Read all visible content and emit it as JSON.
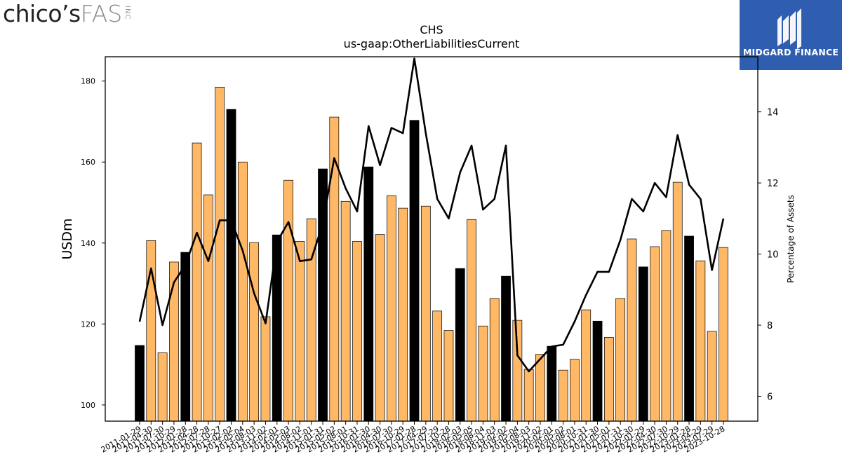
{
  "logo_left": {
    "brand": "chico’s",
    "sub": "FAS",
    "tag": "INC"
  },
  "logo_right": {
    "caption": "MIDGARD FINANCE"
  },
  "chart_data": {
    "type": "bar",
    "title": "CHS",
    "subtitle": "us-gaap:OtherLiabilitiesCurrent",
    "ylabel": "USDm",
    "y2label": "Percentage of Assets",
    "ylim": [
      96,
      186
    ],
    "y2lim": [
      5.3,
      15.55
    ],
    "yticks": [
      100,
      120,
      140,
      160,
      180
    ],
    "y2ticks": [
      6,
      8,
      10,
      12,
      14
    ],
    "categories": [
      "2011-01-29",
      "2011-04-30",
      "2011-07-30",
      "2011-10-29",
      "2012-01-28",
      "2012-04-28",
      "2012-07-28",
      "2012-10-27",
      "2013-02-02",
      "2013-05-04",
      "2013-08-03",
      "2013-11-02",
      "2014-02-01",
      "2014-05-03",
      "2014-08-02",
      "2014-11-01",
      "2015-01-31",
      "2015-05-02",
      "2015-08-01",
      "2015-10-31",
      "2016-01-30",
      "2016-04-30",
      "2016-07-30",
      "2016-10-29",
      "2017-01-28",
      "2017-04-29",
      "2017-07-29",
      "2017-10-28",
      "2018-02-03",
      "2018-05-05",
      "2018-08-04",
      "2018-11-03",
      "2019-02-02",
      "2019-05-04",
      "2019-08-03",
      "2019-11-02",
      "2020-02-01",
      "2020-05-02",
      "2020-08-01",
      "2020-10-31",
      "2021-01-30",
      "2021-05-01",
      "2021-07-31",
      "2021-10-30",
      "2022-01-29",
      "2022-04-30",
      "2022-07-30",
      "2022-10-29",
      "2023-01-28",
      "2023-04-29",
      "2023-07-29",
      "2023-10-28"
    ],
    "series": [
      {
        "type": "bar",
        "axis": "left",
        "colors": {
          "fiscal_year_end": "#000000",
          "quarter": "#ffb866"
        },
        "values": [
          114.7,
          140.6,
          112.9,
          135.3,
          137.7,
          164.7,
          151.9,
          178.5,
          173.0,
          160.0,
          140.1,
          121.8,
          142.0,
          155.5,
          140.4,
          146.0,
          158.3,
          171.1,
          150.3,
          140.4,
          158.8,
          142.1,
          151.7,
          148.6,
          170.3,
          149.1,
          123.2,
          118.4,
          133.7,
          145.8,
          119.5,
          126.3,
          131.8,
          120.9,
          108.8,
          112.5,
          114.5,
          108.6,
          111.3,
          123.5,
          120.7,
          116.7,
          126.3,
          141.0,
          134.1,
          139.1,
          143.1,
          155.0,
          141.7,
          135.6,
          118.2,
          138.9
        ],
        "fiscal_year_end": [
          true,
          false,
          false,
          false,
          true,
          false,
          false,
          false,
          true,
          false,
          false,
          false,
          true,
          false,
          false,
          false,
          true,
          false,
          false,
          false,
          true,
          false,
          false,
          false,
          true,
          false,
          false,
          false,
          true,
          false,
          false,
          false,
          true,
          false,
          false,
          false,
          true,
          false,
          false,
          false,
          true,
          false,
          false,
          false,
          true,
          false,
          false,
          false,
          true,
          false,
          false,
          false
        ]
      },
      {
        "type": "line",
        "axis": "right",
        "color": "#000000",
        "values": [
          8.1,
          9.6,
          8.0,
          9.2,
          9.7,
          10.6,
          9.8,
          10.95,
          10.95,
          10.1,
          8.9,
          8.05,
          10.35,
          10.9,
          9.8,
          9.85,
          10.85,
          12.7,
          11.85,
          11.2,
          13.6,
          12.5,
          13.55,
          13.4,
          15.5,
          13.4,
          11.55,
          11.0,
          12.3,
          13.05,
          11.25,
          11.55,
          13.05,
          7.15,
          6.7,
          7.05,
          7.4,
          7.45,
          8.1,
          8.85,
          9.5,
          9.5,
          10.4,
          11.55,
          11.2,
          12.0,
          11.6,
          13.35,
          11.95,
          11.55,
          9.55,
          11.0
        ]
      }
    ],
    "grid": false,
    "legend": "none"
  }
}
